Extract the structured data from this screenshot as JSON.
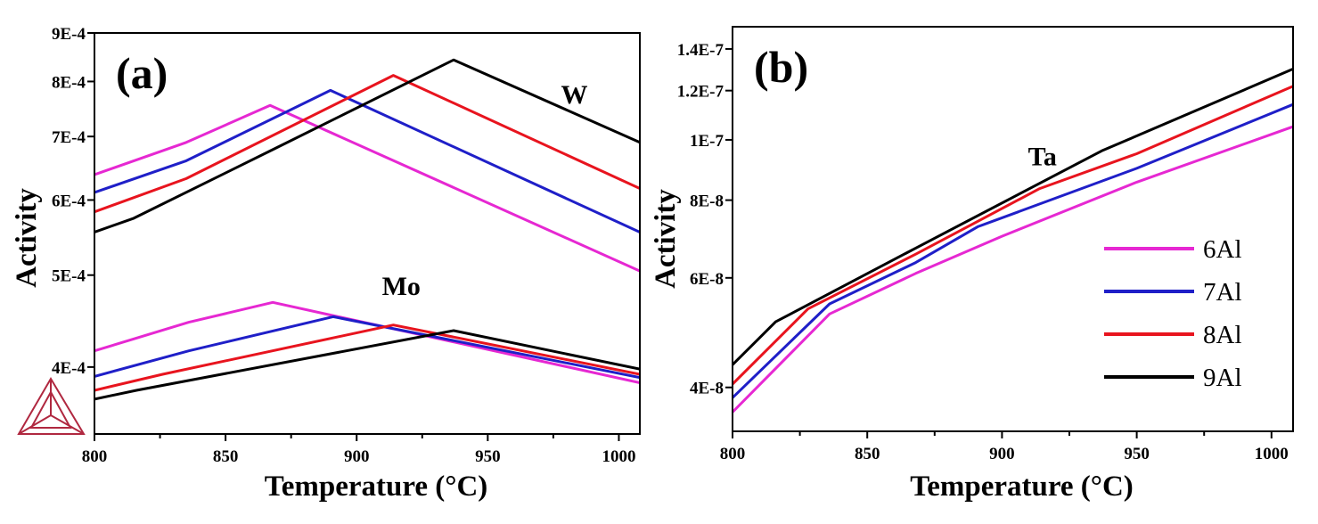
{
  "colors": {
    "6Al": "#e628d2",
    "7Al": "#1f1fc8",
    "8Al": "#e8141e",
    "9Al": "#000000",
    "logo": "#b02840"
  },
  "chart_data": [
    {
      "type": "line",
      "panel_label": "(a)",
      "xlabel": "Temperature (°C)",
      "ylabel": "Activity",
      "xlim": [
        800,
        1008
      ],
      "ylim": [
        0.00034,
        0.0009
      ],
      "yscale": "log",
      "xticks": [
        800,
        850,
        900,
        950,
        1000
      ],
      "xtick_labels": [
        "800",
        "850",
        "900",
        "950",
        "1000"
      ],
      "yticks": [
        0.0004,
        0.0005,
        0.0006,
        0.0007,
        0.0008,
        0.0009
      ],
      "ytick_labels": [
        "4E-4",
        "5E-4",
        "6E-4",
        "7E-4",
        "8E-4",
        "9E-4"
      ],
      "annotations": [
        {
          "text": "W",
          "x": 983,
          "y": 0.000775
        },
        {
          "text": "Mo",
          "x": 917,
          "y": 0.000487
        }
      ],
      "series": [
        {
          "name": "6Al",
          "element": "W",
          "x": [
            800,
            835,
            867,
            1008
          ],
          "y": [
            0.000638,
            0.00069,
            0.000755,
            0.000505
          ]
        },
        {
          "name": "7Al",
          "element": "W",
          "x": [
            800,
            835,
            890,
            1008
          ],
          "y": [
            0.000611,
            0.00066,
            0.000783,
            0.000555
          ]
        },
        {
          "name": "8Al",
          "element": "W",
          "x": [
            800,
            835,
            914,
            1008
          ],
          "y": [
            0.000583,
            0.000632,
            0.000812,
            0.000617
          ]
        },
        {
          "name": "9Al",
          "element": "W",
          "x": [
            800,
            815,
            868,
            937,
            1008
          ],
          "y": [
            0.000555,
            0.000574,
            0.000678,
            0.000843,
            0.00069
          ]
        },
        {
          "name": "6Al",
          "element": "Mo",
          "x": [
            800,
            836,
            868,
            1008
          ],
          "y": [
            0.000416,
            0.000446,
            0.000468,
            0.000385
          ]
        },
        {
          "name": "7Al",
          "element": "Mo",
          "x": [
            800,
            836,
            891,
            1008
          ],
          "y": [
            0.000391,
            0.000416,
            0.000452,
            0.00039
          ]
        },
        {
          "name": "8Al",
          "element": "Mo",
          "x": [
            800,
            826,
            914,
            1008
          ],
          "y": [
            0.000378,
            0.000393,
            0.000443,
            0.000393
          ]
        },
        {
          "name": "9Al",
          "element": "Mo",
          "x": [
            800,
            816,
            937,
            1008
          ],
          "y": [
            0.00037,
            0.000378,
            0.000437,
            0.000398
          ]
        }
      ]
    },
    {
      "type": "line",
      "panel_label": "(b)",
      "xlabel": "Temperature (°C)",
      "ylabel": "Activity",
      "xlim": [
        800,
        1008
      ],
      "ylim": [
        3.4e-08,
        1.52e-07
      ],
      "yscale": "log",
      "xticks": [
        800,
        850,
        900,
        950,
        1000
      ],
      "xtick_labels": [
        "800",
        "850",
        "900",
        "950",
        "1000"
      ],
      "yticks": [
        4e-08,
        6e-08,
        8e-08,
        1e-07,
        1.2e-07,
        1.4e-07
      ],
      "ytick_labels": [
        "4E-8",
        "6E-8",
        "8E-8",
        "1E-7",
        "1.2E-7",
        "1.4E-7"
      ],
      "annotations": [
        {
          "text": "Ta",
          "x": 915,
          "y": 9.4e-08
        }
      ],
      "legend": {
        "placement": "lower-right",
        "entries": [
          "6Al",
          "7Al",
          "8Al",
          "9Al"
        ]
      },
      "series": [
        {
          "name": "6Al",
          "x": [
            800,
            836,
            868,
            900,
            950,
            1008
          ],
          "y": [
            3.65e-08,
            5.25e-08,
            6.1e-08,
            7e-08,
            8.55e-08,
            1.05e-07
          ]
        },
        {
          "name": "7Al",
          "x": [
            800,
            836,
            868,
            891,
            950,
            1008
          ],
          "y": [
            3.85e-08,
            5.45e-08,
            6.35e-08,
            7.25e-08,
            9e-08,
            1.14e-07
          ]
        },
        {
          "name": "8Al",
          "x": [
            800,
            828,
            868,
            914,
            950,
            1008
          ],
          "y": [
            4.05e-08,
            5.35e-08,
            6.55e-08,
            8.35e-08,
            9.5e-08,
            1.22e-07
          ]
        },
        {
          "name": "9Al",
          "x": [
            800,
            816,
            868,
            937,
            1008
          ],
          "y": [
            4.35e-08,
            5.1e-08,
            6.7e-08,
            9.6e-08,
            1.3e-07
          ]
        }
      ]
    }
  ]
}
